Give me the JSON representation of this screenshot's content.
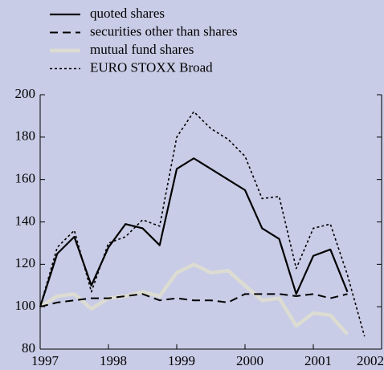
{
  "chart_data": {
    "type": "line",
    "x": [
      1997,
      1997.25,
      1997.5,
      1997.75,
      1998,
      1998.25,
      1998.5,
      1998.75,
      1999,
      1999.25,
      1999.5,
      1999.75,
      2000,
      2000.25,
      2000.5,
      2000.75,
      2001,
      2001.25,
      2001.5,
      2001.75
    ],
    "series": [
      {
        "name": "quoted shares",
        "color": "#000000",
        "dash": "solid",
        "values": [
          100,
          125,
          133,
          110,
          128,
          139,
          137,
          129,
          165,
          170,
          165,
          160,
          155,
          137,
          132,
          106,
          124,
          127,
          107,
          null
        ]
      },
      {
        "name": "securities other than shares",
        "color": "#000000",
        "dash": "dashed",
        "values": [
          100,
          102,
          103,
          104,
          104,
          105,
          106,
          103,
          104,
          103,
          103,
          102,
          106,
          106,
          106,
          105,
          106,
          104,
          106,
          null
        ]
      },
      {
        "name": "mutual fund shares",
        "color": "#dcdcd2",
        "dash": "thick",
        "values": [
          100,
          105,
          106,
          99,
          104,
          105,
          107,
          105,
          116,
          120,
          116,
          117,
          110,
          103,
          104,
          91,
          97,
          96,
          87,
          null
        ]
      },
      {
        "name": "EURO STOXX  Broad",
        "color": "#000000",
        "dash": "dotted",
        "values": [
          100,
          128,
          136,
          107,
          130,
          133,
          141,
          138,
          180,
          192,
          184,
          179,
          171,
          151,
          152,
          118,
          137,
          139,
          115,
          86
        ]
      }
    ],
    "xlim": [
      1997,
      2002
    ],
    "xticks": [
      1997,
      1998,
      1999,
      2000,
      2001,
      2002
    ],
    "ylim": [
      80,
      200
    ],
    "yticks": [
      80,
      100,
      120,
      140,
      160,
      180,
      200
    ],
    "legend": "top-left"
  }
}
